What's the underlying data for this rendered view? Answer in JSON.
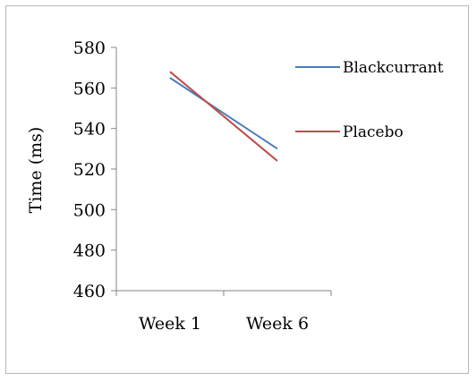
{
  "chart_data": {
    "type": "line",
    "categories": [
      "Week 1",
      "Week 6"
    ],
    "series": [
      {
        "name": "Blackcurrant",
        "values": [
          565,
          530
        ],
        "color": "#4a7ebb"
      },
      {
        "name": "Placebo",
        "values": [
          568,
          524
        ],
        "color": "#be4b48"
      }
    ],
    "ylabel": "Time (ms)",
    "xlabel": "",
    "title": "",
    "ylim": [
      460,
      580
    ],
    "yticks": [
      460,
      480,
      500,
      520,
      540,
      560,
      580
    ],
    "grid": false,
    "legend_position": "right"
  }
}
